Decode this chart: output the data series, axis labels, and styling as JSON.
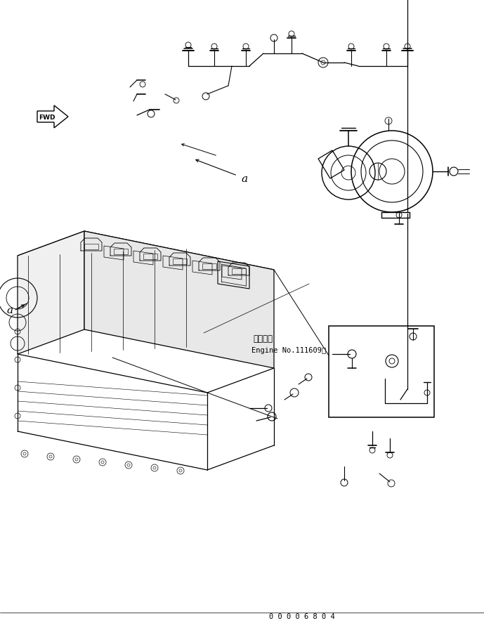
{
  "bg_color": "#ffffff",
  "line_color": "#000000",
  "fig_width": 6.89,
  "fig_height": 8.95,
  "dpi": 100,
  "part_number": "0 0 0 0 6 8 0 4",
  "fwd_label": "FWD",
  "label_a": "a",
  "engine_note_jp": "適用号機",
  "engine_note_en": "Engine No.111609～"
}
